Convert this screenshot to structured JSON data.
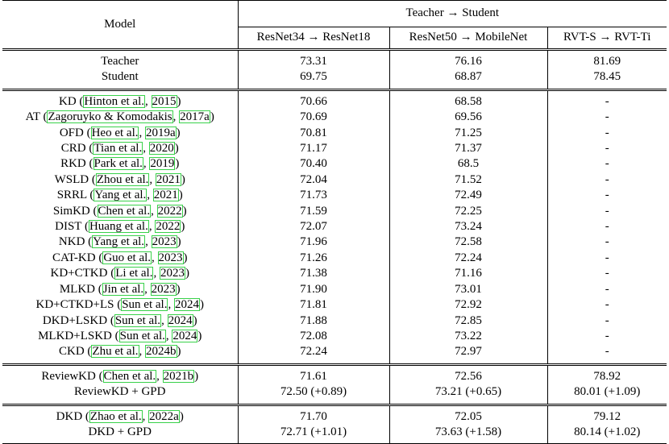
{
  "header": {
    "model_label": "Model",
    "group_label": "Teacher → Student",
    "pairs": [
      "ResNet34 → ResNet18",
      "ResNet50 → MobileNet",
      "RVT-S → RVT-Ti"
    ]
  },
  "groups": [
    {
      "rows": [
        {
          "method": "Teacher",
          "cite_open": "",
          "cite_name": "",
          "cite_sep": "",
          "cite_year": "",
          "cite_close": "",
          "r18": "73.31",
          "mob": "76.16",
          "rvt": "81.69"
        },
        {
          "method": "Student",
          "cite_open": "",
          "cite_name": "",
          "cite_sep": "",
          "cite_year": "",
          "cite_close": "",
          "r18": "69.75",
          "mob": "68.87",
          "rvt": "78.45"
        }
      ]
    },
    {
      "rows": [
        {
          "method": "KD",
          "cite_open": "(",
          "cite_name": "Hinton et al.",
          "cite_sep": ", ",
          "cite_year": "2015",
          "cite_close": ")",
          "r18": "70.66",
          "mob": "68.58",
          "rvt": "-"
        },
        {
          "method": "AT",
          "cite_open": "(",
          "cite_name": "Zagoruyko & Komodakis",
          "cite_sep": ", ",
          "cite_year": "2017a",
          "cite_close": ")",
          "r18": "70.69",
          "mob": "69.56",
          "rvt": "-"
        },
        {
          "method": "OFD",
          "cite_open": "(",
          "cite_name": "Heo et al.",
          "cite_sep": ", ",
          "cite_year": "2019a",
          "cite_close": ")",
          "r18": "70.81",
          "mob": "71.25",
          "rvt": "-"
        },
        {
          "method": "CRD",
          "cite_open": "(",
          "cite_name": "Tian et al.",
          "cite_sep": ", ",
          "cite_year": "2020",
          "cite_close": ")",
          "r18": "71.17",
          "mob": "71.37",
          "rvt": "-"
        },
        {
          "method": "RKD",
          "cite_open": "(",
          "cite_name": "Park et al.",
          "cite_sep": ", ",
          "cite_year": "2019",
          "cite_close": ")",
          "r18": "70.40",
          "mob": "68.5",
          "rvt": "-"
        },
        {
          "method": "WSLD",
          "cite_open": "(",
          "cite_name": "Zhou et al.",
          "cite_sep": ", ",
          "cite_year": "2021",
          "cite_close": ")",
          "r18": "72.04",
          "mob": "71.52",
          "rvt": "-"
        },
        {
          "method": "SRRL",
          "cite_open": "(",
          "cite_name": "Yang et al.",
          "cite_sep": ", ",
          "cite_year": "2021",
          "cite_close": ")",
          "r18": "71.73",
          "mob": "72.49",
          "rvt": "-"
        },
        {
          "method": "SimKD",
          "cite_open": "(",
          "cite_name": "Chen et al.",
          "cite_sep": ", ",
          "cite_year": "2022",
          "cite_close": ")",
          "r18": "71.59",
          "mob": "72.25",
          "rvt": "-"
        },
        {
          "method": "DIST",
          "cite_open": "(",
          "cite_name": "Huang et al.",
          "cite_sep": ", ",
          "cite_year": "2022",
          "cite_close": ")",
          "r18": "72.07",
          "mob": "73.24",
          "rvt": "-"
        },
        {
          "method": "NKD",
          "cite_open": "(",
          "cite_name": "Yang et al.",
          "cite_sep": ", ",
          "cite_year": "2023",
          "cite_close": ")",
          "r18": "71.96",
          "mob": "72.58",
          "rvt": "-"
        },
        {
          "method": "CAT-KD",
          "cite_open": "(",
          "cite_name": "Guo et al.",
          "cite_sep": ", ",
          "cite_year": "2023",
          "cite_close": ")",
          "r18": "71.26",
          "mob": "72.24",
          "rvt": "-"
        },
        {
          "method": "KD+CTKD",
          "cite_open": "(",
          "cite_name": "Li et al.",
          "cite_sep": ", ",
          "cite_year": "2023",
          "cite_close": ")",
          "r18": "71.38",
          "mob": "71.16",
          "rvt": "-"
        },
        {
          "method": "MLKD",
          "cite_open": "(",
          "cite_name": "Jin et al.",
          "cite_sep": ", ",
          "cite_year": "2023",
          "cite_close": ")",
          "r18": "71.90",
          "mob": "73.01",
          "rvt": "-"
        },
        {
          "method": "KD+CTKD+LS",
          "cite_open": "(",
          "cite_name": "Sun et al.",
          "cite_sep": ", ",
          "cite_year": "2024",
          "cite_close": ")",
          "r18": "71.81",
          "mob": "72.92",
          "rvt": "-"
        },
        {
          "method": "DKD+LSKD",
          "cite_open": "(",
          "cite_name": "Sun et al.",
          "cite_sep": ", ",
          "cite_year": "2024",
          "cite_close": ")",
          "r18": "71.88",
          "mob": "72.85",
          "rvt": "-"
        },
        {
          "method": "MLKD+LSKD",
          "cite_open": "(",
          "cite_name": "Sun et al.",
          "cite_sep": ", ",
          "cite_year": "2024",
          "cite_close": ")",
          "r18": "72.08",
          "mob": "73.22",
          "rvt": "-"
        },
        {
          "method": "CKD",
          "cite_open": "(",
          "cite_name": "Zhu et al.",
          "cite_sep": ", ",
          "cite_year": "2024b",
          "cite_close": ")",
          "r18": "72.24",
          "mob": "72.97",
          "rvt": "-"
        }
      ]
    },
    {
      "rows": [
        {
          "method": "ReviewKD",
          "cite_open": "(",
          "cite_name": "Chen et al.",
          "cite_sep": ", ",
          "cite_year": "2021b",
          "cite_close": ")",
          "r18": "71.61",
          "mob": "72.56",
          "rvt": "78.92"
        },
        {
          "method": "ReviewKD + GPD",
          "cite_open": "",
          "cite_name": "",
          "cite_sep": "",
          "cite_year": "",
          "cite_close": "",
          "r18": "72.50 (+0.89)",
          "mob": "73.21 (+0.65)",
          "rvt": "80.01 (+1.09)",
          "bold": true
        }
      ]
    },
    {
      "rows": [
        {
          "method": "DKD",
          "cite_open": "(",
          "cite_name": "Zhao et al.",
          "cite_sep": ", ",
          "cite_year": "2022a",
          "cite_close": ")",
          "r18": "71.70",
          "mob": "72.05",
          "rvt": "79.12"
        },
        {
          "method": "DKD + GPD",
          "cite_open": "",
          "cite_name": "",
          "cite_sep": "",
          "cite_year": "",
          "cite_close": "",
          "r18": "72.71 (+1.01)",
          "mob": "73.63 (+1.58)",
          "rvt": "80.14 (+1.02)",
          "bold": true
        }
      ]
    }
  ],
  "colors": {
    "citation_box": "#39d14a",
    "rule": "#000000"
  }
}
